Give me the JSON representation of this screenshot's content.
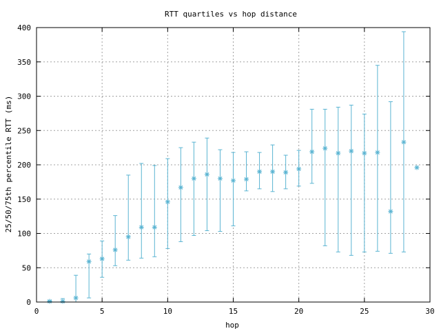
{
  "chart_data": {
    "type": "scatter",
    "title": "RTT quartiles vs hop distance",
    "xlabel": "hop",
    "ylabel": "25/50/75th percentile RTT (ms)",
    "xlim": [
      0,
      30
    ],
    "ylim": [
      0,
      400
    ],
    "x_ticks": [
      0,
      5,
      10,
      15,
      20,
      25,
      30
    ],
    "y_ticks": [
      0,
      50,
      100,
      150,
      200,
      250,
      300,
      350,
      400
    ],
    "grid": true,
    "legend": "none",
    "series_color": "#5ab4d2",
    "marker": "asterisk",
    "points": [
      {
        "x": 1,
        "median": 1,
        "low": 0,
        "high": 2
      },
      {
        "x": 2,
        "median": 1,
        "low": 0,
        "high": 5
      },
      {
        "x": 3,
        "median": 6,
        "low": 0,
        "high": 39
      },
      {
        "x": 4,
        "median": 59,
        "low": 6,
        "high": 70
      },
      {
        "x": 5,
        "median": 63,
        "low": 36,
        "high": 89
      },
      {
        "x": 6,
        "median": 76,
        "low": 53,
        "high": 126
      },
      {
        "x": 7,
        "median": 95,
        "low": 61,
        "high": 185
      },
      {
        "x": 8,
        "median": 109,
        "low": 64,
        "high": 202
      },
      {
        "x": 9,
        "median": 109,
        "low": 66,
        "high": 199
      },
      {
        "x": 10,
        "median": 146,
        "low": 78,
        "high": 209
      },
      {
        "x": 11,
        "median": 167,
        "low": 88,
        "high": 225
      },
      {
        "x": 12,
        "median": 180,
        "low": 97,
        "high": 233
      },
      {
        "x": 13,
        "median": 186,
        "low": 104,
        "high": 239
      },
      {
        "x": 14,
        "median": 180,
        "low": 103,
        "high": 222
      },
      {
        "x": 15,
        "median": 177,
        "low": 111,
        "high": 218
      },
      {
        "x": 16,
        "median": 179,
        "low": 162,
        "high": 219
      },
      {
        "x": 17,
        "median": 190,
        "low": 165,
        "high": 218
      },
      {
        "x": 18,
        "median": 190,
        "low": 161,
        "high": 229
      },
      {
        "x": 19,
        "median": 189,
        "low": 165,
        "high": 214
      },
      {
        "x": 20,
        "median": 194,
        "low": 169,
        "high": 221
      },
      {
        "x": 21,
        "median": 219,
        "low": 173,
        "high": 281
      },
      {
        "x": 22,
        "median": 224,
        "low": 82,
        "high": 281
      },
      {
        "x": 23,
        "median": 217,
        "low": 73,
        "high": 284
      },
      {
        "x": 24,
        "median": 220,
        "low": 68,
        "high": 287
      },
      {
        "x": 25,
        "median": 217,
        "low": 73,
        "high": 274
      },
      {
        "x": 26,
        "median": 218,
        "low": 74,
        "high": 345
      },
      {
        "x": 27,
        "median": 132,
        "low": 71,
        "high": 292
      },
      {
        "x": 28,
        "median": 233,
        "low": 73,
        "high": 394
      },
      {
        "x": 29,
        "median": 196,
        "low": 196,
        "high": 196
      }
    ]
  }
}
